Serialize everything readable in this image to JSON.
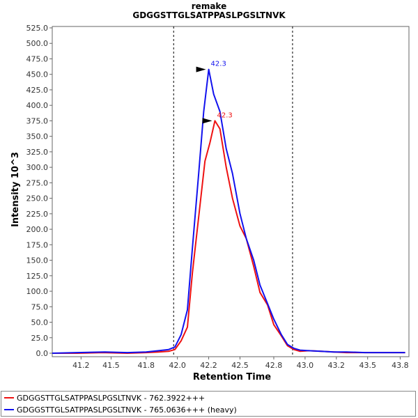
{
  "chart_data": {
    "type": "line",
    "title": "remake",
    "subtitle": "GDGGSTTGLSATPPASLPGSLTNVK",
    "xlabel": "Retention Time",
    "ylabel": "Intensity 10^3",
    "xlim": [
      41.0,
      43.85
    ],
    "ylim": [
      0,
      525
    ],
    "xticks": [
      "41.2",
      "41.5",
      "41.8",
      "42.0",
      "42.2",
      "42.5",
      "42.8",
      "43.0",
      "43.2",
      "43.5",
      "43.8"
    ],
    "xtick_values": [
      41.23,
      41.47,
      41.75,
      42.0,
      42.25,
      42.5,
      42.77,
      43.02,
      43.27,
      43.52,
      43.78
    ],
    "yticks": [
      "0.0",
      "25.0",
      "50.0",
      "75.0",
      "100.0",
      "125.0",
      "150.0",
      "175.0",
      "200.0",
      "225.0",
      "250.0",
      "275.0",
      "300.0",
      "325.0",
      "350.0",
      "375.0",
      "400.0",
      "425.0",
      "450.0",
      "475.0",
      "500.0",
      "525.0"
    ],
    "ytick_values": [
      0,
      25,
      50,
      75,
      100,
      125,
      150,
      175,
      200,
      225,
      250,
      275,
      300,
      325,
      350,
      375,
      400,
      425,
      450,
      475,
      500,
      525
    ],
    "integration_bounds": [
      41.97,
      42.92
    ],
    "legend_position": "bottom",
    "series": [
      {
        "name": "GDGGSTTGLSATPPASLPGSLTNVK - 762.3922+++",
        "color": "#ee1111",
        "peak_label": "42.3",
        "peak": [
          42.3,
          375
        ],
        "x": [
          41.0,
          41.2,
          41.4,
          41.6,
          41.75,
          41.85,
          41.93,
          41.98,
          42.03,
          42.08,
          42.12,
          42.17,
          42.22,
          42.26,
          42.3,
          42.34,
          42.39,
          42.44,
          42.5,
          42.55,
          42.61,
          42.66,
          42.72,
          42.77,
          42.83,
          42.88,
          42.93,
          42.98,
          43.05,
          43.15,
          43.25,
          43.35,
          43.5,
          43.65,
          43.82
        ],
        "y": [
          0,
          0,
          1,
          0,
          1,
          2,
          3,
          6,
          20,
          42,
          130,
          220,
          310,
          340,
          375,
          362,
          300,
          250,
          205,
          185,
          140,
          98,
          78,
          46,
          28,
          12,
          6,
          3,
          4,
          3,
          2,
          1,
          1,
          1,
          1
        ]
      },
      {
        "name": "GDGGSTTGLSATPPASLPGSLTNVK - 765.0636+++ (heavy)",
        "color": "#1111ee",
        "peak_label": "42.3",
        "peak": [
          42.25,
          458
        ],
        "x": [
          41.0,
          41.2,
          41.42,
          41.6,
          41.75,
          41.85,
          41.93,
          41.98,
          42.03,
          42.08,
          42.12,
          42.17,
          42.21,
          42.25,
          42.29,
          42.34,
          42.39,
          42.44,
          42.5,
          42.55,
          42.61,
          42.66,
          42.72,
          42.77,
          42.83,
          42.88,
          42.93,
          42.98,
          43.05,
          43.15,
          43.25,
          43.35,
          43.5,
          43.65,
          43.82
        ],
        "y": [
          0,
          1,
          2,
          1,
          2,
          4,
          6,
          10,
          30,
          70,
          170,
          290,
          390,
          458,
          418,
          390,
          330,
          290,
          225,
          185,
          150,
          110,
          80,
          55,
          30,
          14,
          8,
          5,
          4,
          3,
          2,
          2,
          1,
          1,
          1
        ]
      }
    ]
  }
}
